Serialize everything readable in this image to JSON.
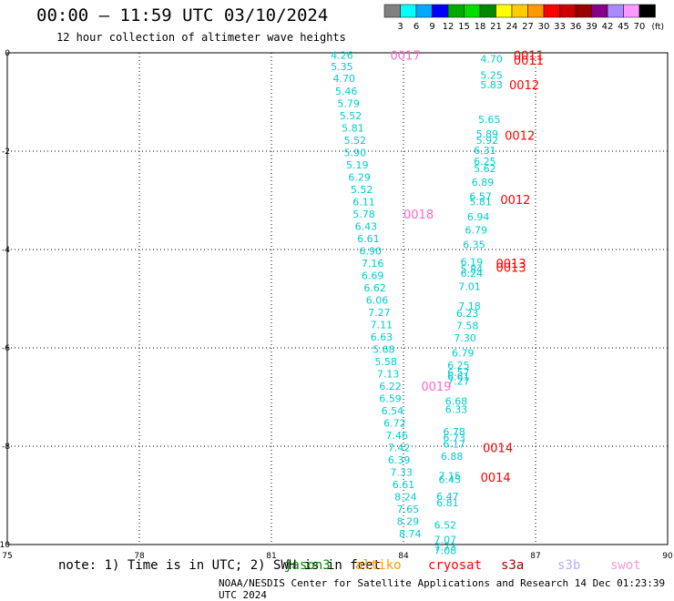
{
  "header": {
    "title": "00:00 — 11:59 UTC 03/10/2024",
    "subtitle": "12 hour collection of altimeter wave heights"
  },
  "colorbar": {
    "unit": "(ft)",
    "labels": [
      "3",
      "6",
      "9",
      "12",
      "15",
      "18",
      "21",
      "24",
      "27",
      "30",
      "33",
      "36",
      "39",
      "42",
      "45",
      "70"
    ],
    "colors": [
      "#808080",
      "#00ffff",
      "#00aaff",
      "#0000ff",
      "#00aa00",
      "#00dd00",
      "#008800",
      "#ffff00",
      "#ffcc00",
      "#ff9900",
      "#ff0000",
      "#cc0000",
      "#990000",
      "#880088",
      "#aa88ff",
      "#ff99ff",
      "#000000"
    ]
  },
  "chart_data": {
    "type": "scatter",
    "xlim": [
      75,
      90
    ],
    "ylim": [
      -10,
      0
    ],
    "xticks": [
      "75",
      "78",
      "81",
      "84",
      "87",
      "90"
    ],
    "yticks": [
      "0",
      "-2",
      "-4",
      "-6",
      "-8",
      "-10"
    ],
    "grid": true,
    "series": [
      {
        "name": "jason3",
        "color": "#00cccc",
        "points": [
          {
            "x": 82.6,
            "y": -0.05,
            "label": "4.26"
          },
          {
            "x": 82.6,
            "y": -0.28,
            "label": "5.35"
          },
          {
            "x": 82.65,
            "y": -0.52,
            "label": "4.70"
          },
          {
            "x": 82.7,
            "y": -0.78,
            "label": "5.46"
          },
          {
            "x": 82.75,
            "y": -1.03,
            "label": "5.79"
          },
          {
            "x": 82.8,
            "y": -1.28,
            "label": "5.52"
          },
          {
            "x": 82.85,
            "y": -1.53,
            "label": "5.81"
          },
          {
            "x": 82.9,
            "y": -1.78,
            "label": "5.52"
          },
          {
            "x": 82.9,
            "y": -2.03,
            "label": "5.90"
          },
          {
            "x": 82.95,
            "y": -2.28,
            "label": "5.19"
          },
          {
            "x": 83.0,
            "y": -2.53,
            "label": "6.29"
          },
          {
            "x": 83.05,
            "y": -2.78,
            "label": "5.52"
          },
          {
            "x": 83.1,
            "y": -3.03,
            "label": "6.11"
          },
          {
            "x": 83.1,
            "y": -3.28,
            "label": "5.78"
          },
          {
            "x": 83.15,
            "y": -3.53,
            "label": "6.43"
          },
          {
            "x": 83.2,
            "y": -3.78,
            "label": "6.61"
          },
          {
            "x": 83.25,
            "y": -4.03,
            "label": "6.90"
          },
          {
            "x": 83.3,
            "y": -4.28,
            "label": "7.16"
          },
          {
            "x": 83.3,
            "y": -4.53,
            "label": "6.69"
          },
          {
            "x": 83.35,
            "y": -4.78,
            "label": "6.62"
          },
          {
            "x": 83.4,
            "y": -5.03,
            "label": "6.06"
          },
          {
            "x": 83.45,
            "y": -5.28,
            "label": "7.27"
          },
          {
            "x": 83.5,
            "y": -5.53,
            "label": "7.11"
          },
          {
            "x": 83.5,
            "y": -5.78,
            "label": "6.63"
          },
          {
            "x": 83.55,
            "y": -6.03,
            "label": "5.68"
          },
          {
            "x": 83.6,
            "y": -6.28,
            "label": "5.58"
          },
          {
            "x": 83.65,
            "y": -6.53,
            "label": "7.13"
          },
          {
            "x": 83.7,
            "y": -6.78,
            "label": "6.22"
          },
          {
            "x": 83.7,
            "y": -7.03,
            "label": "6.59"
          },
          {
            "x": 83.75,
            "y": -7.28,
            "label": "6.54"
          },
          {
            "x": 83.8,
            "y": -7.53,
            "label": "6.72"
          },
          {
            "x": 83.85,
            "y": -7.78,
            "label": "7.46"
          },
          {
            "x": 83.9,
            "y": -8.03,
            "label": "7.42"
          },
          {
            "x": 83.9,
            "y": -8.28,
            "label": "6.39"
          },
          {
            "x": 83.95,
            "y": -8.53,
            "label": "7.33"
          },
          {
            "x": 84.0,
            "y": -8.78,
            "label": "6.61"
          },
          {
            "x": 84.05,
            "y": -9.03,
            "label": "8.24"
          },
          {
            "x": 84.1,
            "y": -9.28,
            "label": "7.65"
          },
          {
            "x": 84.1,
            "y": -9.53,
            "label": "8.29"
          },
          {
            "x": 84.15,
            "y": -9.78,
            "label": "8.74"
          }
        ]
      },
      {
        "name": "sentinel",
        "color": "#00cccc",
        "points": [
          {
            "x": 86.0,
            "y": -0.12,
            "label": "4.70"
          },
          {
            "x": 86.0,
            "y": -0.45,
            "label": "5.25"
          },
          {
            "x": 86.0,
            "y": -0.65,
            "label": "5.83"
          },
          {
            "x": 85.95,
            "y": -1.35,
            "label": "5.65"
          },
          {
            "x": 85.9,
            "y": -1.65,
            "label": "5.89"
          },
          {
            "x": 85.9,
            "y": -1.78,
            "label": "5.92"
          },
          {
            "x": 85.85,
            "y": -1.98,
            "label": "6.31"
          },
          {
            "x": 85.85,
            "y": -2.2,
            "label": "6.25"
          },
          {
            "x": 85.85,
            "y": -2.35,
            "label": "5.62"
          },
          {
            "x": 85.8,
            "y": -2.63,
            "label": "6.89"
          },
          {
            "x": 85.75,
            "y": -2.92,
            "label": "6.57"
          },
          {
            "x": 85.75,
            "y": -3.03,
            "label": "5.81"
          },
          {
            "x": 85.7,
            "y": -3.33,
            "label": "6.94"
          },
          {
            "x": 85.65,
            "y": -3.6,
            "label": "6.79"
          },
          {
            "x": 85.6,
            "y": -3.9,
            "label": "6.35"
          },
          {
            "x": 85.55,
            "y": -4.25,
            "label": "6.19"
          },
          {
            "x": 85.55,
            "y": -4.4,
            "label": "5.84"
          },
          {
            "x": 85.55,
            "y": -4.48,
            "label": "6.24"
          },
          {
            "x": 85.5,
            "y": -4.75,
            "label": "7.01"
          },
          {
            "x": 85.5,
            "y": -5.15,
            "label": "7.18"
          },
          {
            "x": 85.45,
            "y": -5.3,
            "label": "6.23"
          },
          {
            "x": 85.45,
            "y": -5.55,
            "label": "7.58"
          },
          {
            "x": 85.4,
            "y": -5.8,
            "label": "7.30"
          },
          {
            "x": 85.35,
            "y": -6.1,
            "label": "6.79"
          },
          {
            "x": 85.25,
            "y": -6.35,
            "label": "6.25"
          },
          {
            "x": 85.25,
            "y": -6.5,
            "label": "6.57"
          },
          {
            "x": 85.25,
            "y": -6.58,
            "label": "6.61"
          },
          {
            "x": 85.25,
            "y": -6.68,
            "label": "7.27"
          },
          {
            "x": 85.2,
            "y": -7.08,
            "label": "6.68"
          },
          {
            "x": 85.2,
            "y": -7.25,
            "label": "6.33"
          },
          {
            "x": 85.15,
            "y": -7.7,
            "label": "6.78"
          },
          {
            "x": 85.15,
            "y": -7.82,
            "label": "6.73"
          },
          {
            "x": 85.15,
            "y": -7.95,
            "label": "6.17"
          },
          {
            "x": 85.1,
            "y": -8.2,
            "label": "6.88"
          },
          {
            "x": 85.05,
            "y": -8.6,
            "label": "7.15"
          },
          {
            "x": 85.05,
            "y": -8.68,
            "label": "6.45"
          },
          {
            "x": 85.0,
            "y": -9.02,
            "label": "6.47"
          },
          {
            "x": 85.0,
            "y": -9.15,
            "label": "6.81"
          },
          {
            "x": 84.95,
            "y": -9.6,
            "label": "6.52"
          },
          {
            "x": 84.95,
            "y": -9.9,
            "label": "7.07"
          },
          {
            "x": 84.95,
            "y": -10.05,
            "label": "7.73"
          },
          {
            "x": 84.95,
            "y": -10.12,
            "label": "7.08"
          }
        ]
      }
    ],
    "pass_labels": [
      {
        "x": 83.7,
        "y": -0.05,
        "label": "0017",
        "color": "#ff66cc"
      },
      {
        "x": 84.0,
        "y": -3.28,
        "label": "0018",
        "color": "#ff66cc"
      },
      {
        "x": 84.4,
        "y": -6.78,
        "label": "0019",
        "color": "#ff66cc"
      },
      {
        "x": 86.5,
        "y": -0.05,
        "label": "0011",
        "color": "#ff0000"
      },
      {
        "x": 86.5,
        "y": -0.15,
        "label": "0011",
        "color": "#ff0000"
      },
      {
        "x": 86.4,
        "y": -0.65,
        "label": "0012",
        "color": "#ff0000"
      },
      {
        "x": 86.3,
        "y": -1.68,
        "label": "0012",
        "color": "#ff0000"
      },
      {
        "x": 86.2,
        "y": -2.98,
        "label": "0012",
        "color": "#ff0000"
      },
      {
        "x": 86.1,
        "y": -4.28,
        "label": "0013",
        "color": "#ff0000"
      },
      {
        "x": 86.1,
        "y": -4.36,
        "label": "0013",
        "color": "#ff0000"
      },
      {
        "x": 85.8,
        "y": -8.03,
        "label": "0014",
        "color": "#ff0000"
      },
      {
        "x": 85.75,
        "y": -8.63,
        "label": "0014",
        "color": "#ff0000"
      }
    ]
  },
  "bottom": {
    "note": "note: 1) Time is in UTC; 2) SWH is in feet",
    "satellites": [
      {
        "name": "jason3",
        "color": "#008800"
      },
      {
        "name": "altiko",
        "color": "#ff9900"
      },
      {
        "name": "cryosat",
        "color": "#ff0000"
      },
      {
        "name": "s3a",
        "color": "#aa0000"
      },
      {
        "name": "s3b",
        "color": "#bbaaff"
      },
      {
        "name": "swot",
        "color": "#ff99cc"
      }
    ],
    "footer": "NOAA/NESDIS Center for Satellite Applications and Research   14 Dec 01:23:39 UTC 2024"
  }
}
